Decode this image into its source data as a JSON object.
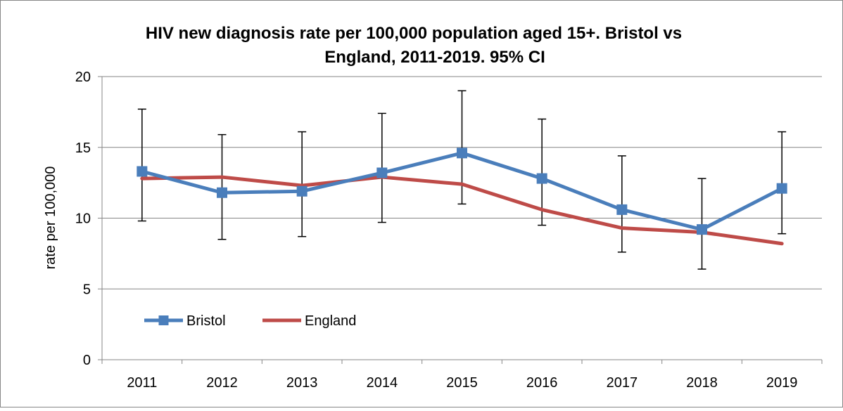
{
  "chart_data": {
    "type": "line",
    "title_lines": [
      "HIV new diagnosis rate per 100,000 population aged 15+. Bristol vs",
      "England, 2011-2019. 95% CI"
    ],
    "xlabel": "",
    "ylabel": "rate per 100,000",
    "categories": [
      "2011",
      "2012",
      "2013",
      "2014",
      "2015",
      "2016",
      "2017",
      "2018",
      "2019"
    ],
    "ylim": [
      0,
      20
    ],
    "yticks": [
      "0",
      "5",
      "10",
      "15",
      "20"
    ],
    "grid": true,
    "legend_position": "bottom-left, inside plot",
    "series": [
      {
        "name": "Bristol",
        "color": "#4A7EBB",
        "marker": "square",
        "values": [
          13.3,
          11.8,
          11.9,
          13.2,
          14.6,
          12.8,
          10.6,
          9.2,
          12.1
        ],
        "ci_lower": [
          9.8,
          8.5,
          8.7,
          9.7,
          11.0,
          9.5,
          7.6,
          6.4,
          8.9
        ],
        "ci_upper": [
          17.7,
          15.9,
          16.1,
          17.4,
          19.0,
          17.0,
          14.4,
          12.8,
          16.1
        ]
      },
      {
        "name": "England",
        "color": "#BE4B48",
        "marker": "none",
        "values": [
          12.8,
          12.9,
          12.3,
          12.9,
          12.4,
          10.6,
          9.3,
          9.0,
          8.2
        ]
      }
    ]
  }
}
